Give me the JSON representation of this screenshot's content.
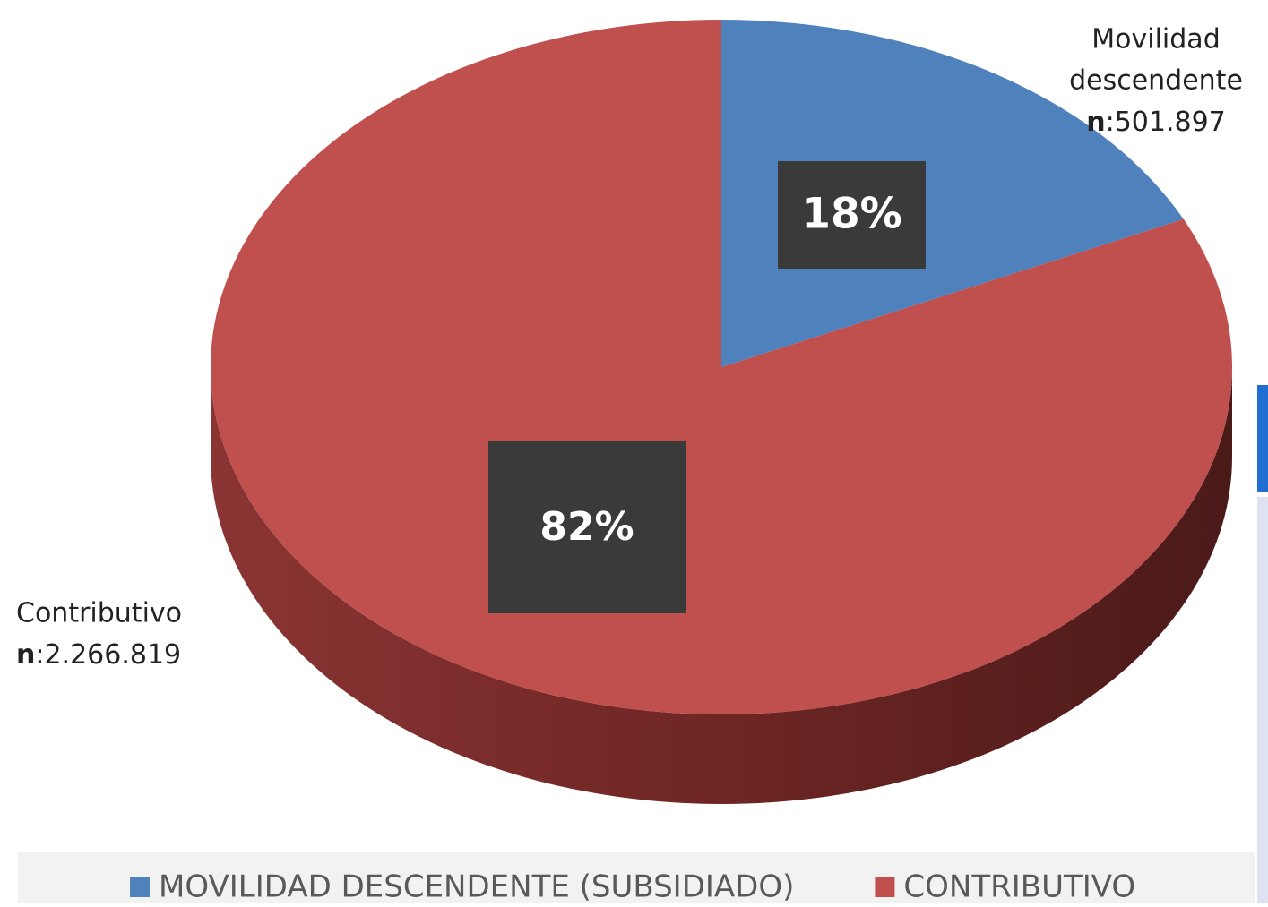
{
  "chart_data": {
    "type": "pie",
    "categories": [
      "MOVILIDAD DESCENDENTE (SUBSIDIADO)",
      "CONTRIBUTIVO"
    ],
    "values": [
      18,
      82
    ],
    "value_labels": [
      "18%",
      "82%"
    ],
    "colors": [
      "#4f81bd",
      "#c0504d"
    ],
    "annotations": [
      {
        "lines": [
          "Movilidad",
          "descendente"
        ],
        "n": [
          "n",
          ":501.897"
        ]
      },
      {
        "lines": [
          "Contributivo"
        ],
        "n": [
          "n",
          ":2.266.819"
        ]
      }
    ],
    "legend": "bottom"
  }
}
